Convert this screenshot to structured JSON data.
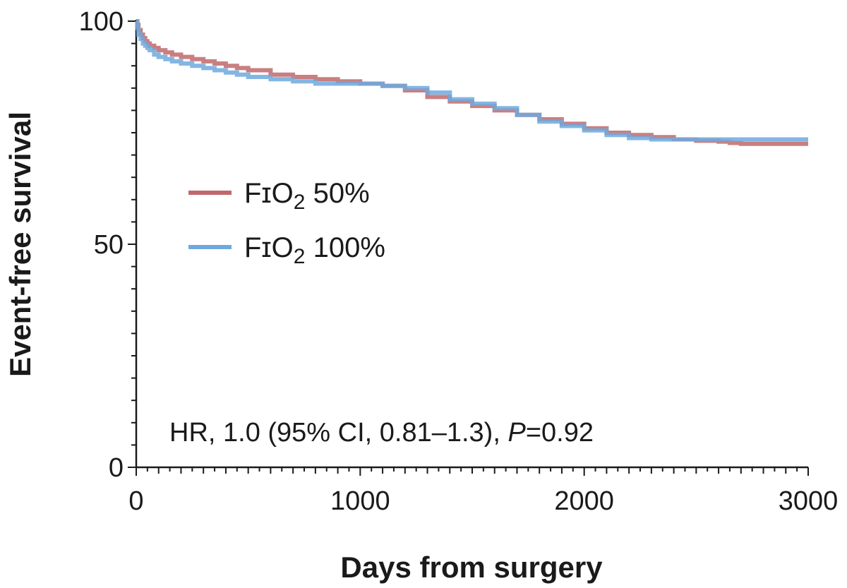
{
  "chart_data": {
    "type": "line",
    "title": "",
    "xlabel": "Days from surgery",
    "ylabel": "Event-free survival",
    "xlim": [
      0,
      3000
    ],
    "ylim": [
      0,
      100
    ],
    "x_ticks": [
      "0",
      "1000",
      "2000",
      "3000"
    ],
    "y_ticks": [
      "0",
      "50",
      "100"
    ],
    "grid": false,
    "legend_position": "middle-left",
    "series": [
      {
        "name": "FɪO₂ 50%",
        "legend_main": "FɪO",
        "legend_sub": "2",
        "legend_suffix": " 50%",
        "color": "#c0686b",
        "x": [
          0,
          5,
          10,
          20,
          30,
          40,
          50,
          60,
          80,
          100,
          130,
          160,
          200,
          250,
          300,
          350,
          400,
          450,
          500,
          600,
          700,
          800,
          900,
          1000,
          1100,
          1200,
          1300,
          1400,
          1500,
          1600,
          1700,
          1800,
          1900,
          2000,
          2100,
          2200,
          2300,
          2400,
          2500,
          2600,
          2650,
          2700,
          3000
        ],
        "y": [
          100,
          99.2,
          98,
          97,
          96.2,
          95.5,
          95,
          94.5,
          94,
          93.5,
          93,
          92.5,
          92,
          91.5,
          91,
          90.5,
          90,
          89.5,
          89,
          88,
          87.5,
          87,
          86.5,
          86,
          85.5,
          84.5,
          83,
          82,
          81,
          80,
          79,
          78,
          77,
          76,
          75,
          74.5,
          74,
          73.5,
          73.2,
          73,
          72.7,
          72.5,
          72.5
        ]
      },
      {
        "name": "FɪO₂ 100%",
        "legend_main": "FɪO",
        "legend_sub": "2",
        "legend_suffix": " 100%",
        "color": "#6ea9de",
        "x": [
          0,
          5,
          10,
          20,
          30,
          40,
          50,
          60,
          80,
          100,
          130,
          160,
          200,
          250,
          300,
          350,
          400,
          450,
          500,
          600,
          700,
          800,
          900,
          1000,
          1100,
          1200,
          1300,
          1400,
          1500,
          1600,
          1700,
          1800,
          1900,
          2000,
          2100,
          2200,
          2300,
          2400,
          2500,
          2600,
          2700,
          3000
        ],
        "y": [
          100,
          98.5,
          97,
          96,
          95,
          94.5,
          94,
          93.5,
          92.5,
          92,
          91.5,
          91,
          90.5,
          90,
          89.5,
          89,
          88.5,
          88,
          87.5,
          87,
          86.5,
          86,
          86,
          86,
          85.5,
          85,
          84,
          82.5,
          81.5,
          80.5,
          79,
          77.5,
          76.5,
          75.5,
          74.5,
          73.8,
          73.5,
          73.5,
          73.5,
          73.5,
          73.5,
          73.5
        ]
      }
    ],
    "annotation": {
      "main": "HR, 1.0 (95% CI, 0.81–1.3), ",
      "italic": "P",
      "tail": "=0.92"
    }
  }
}
